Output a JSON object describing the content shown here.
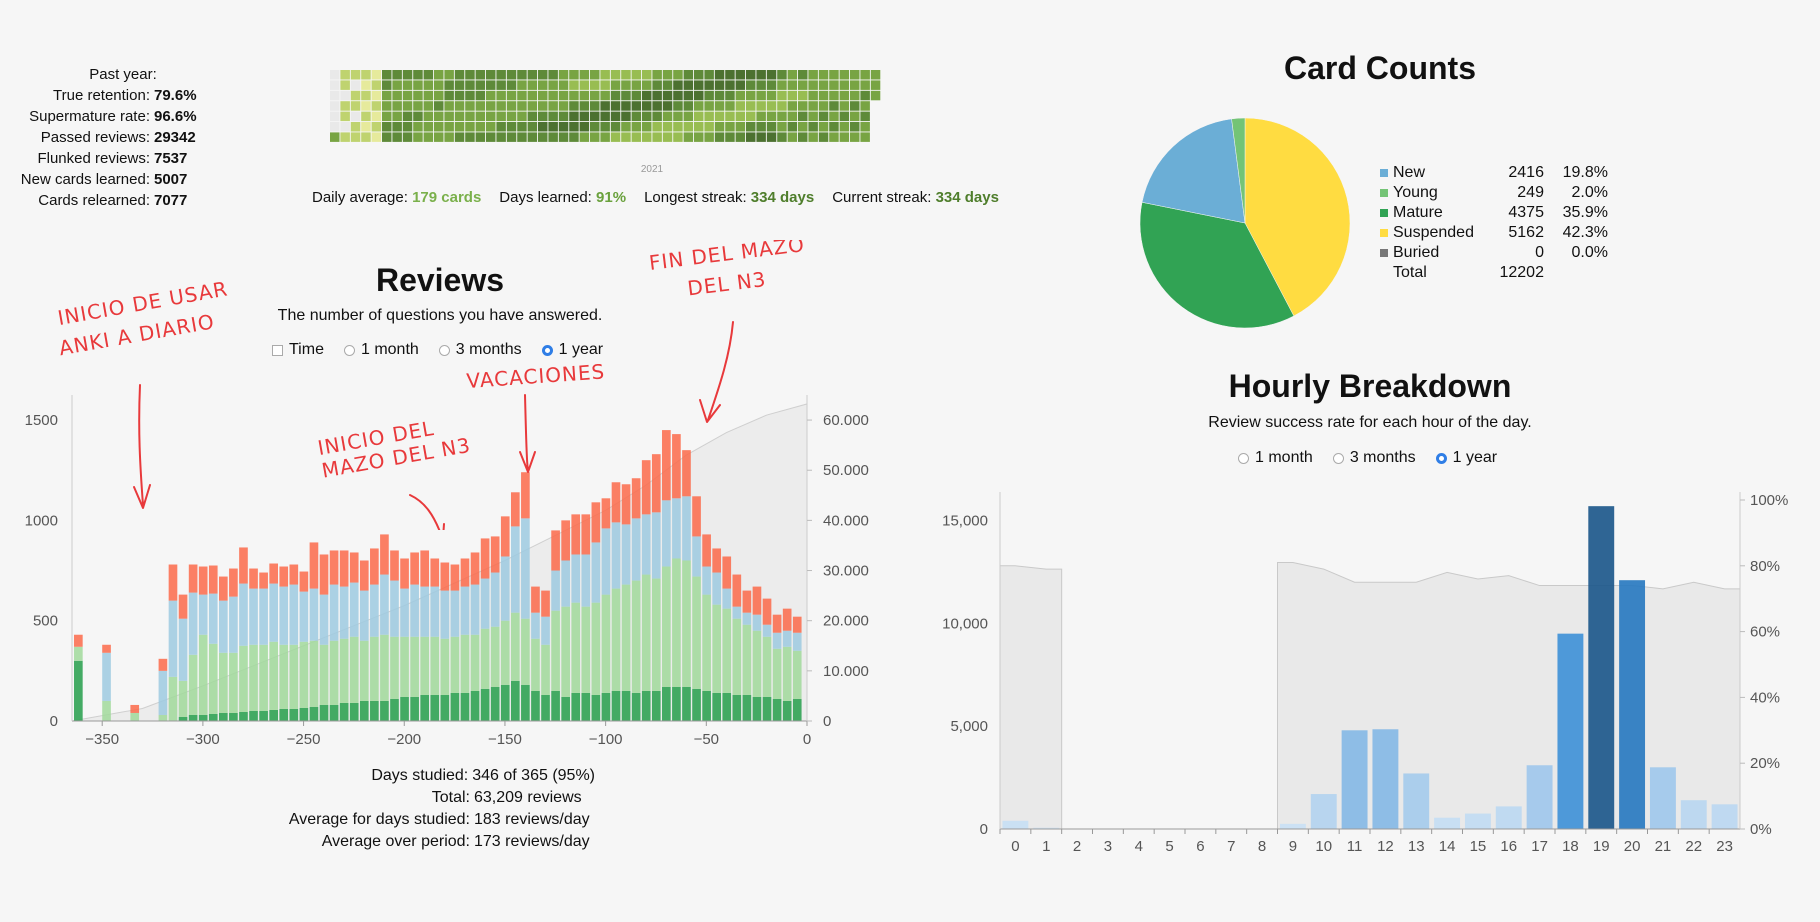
{
  "past_year": {
    "heading": "Past year:",
    "rows": [
      {
        "label": "True retention:",
        "value": "79.6%"
      },
      {
        "label": "Supermature rate:",
        "value": "96.6%"
      },
      {
        "label": "Passed reviews:",
        "value": "29342"
      },
      {
        "label": "Flunked reviews:",
        "value": "7537"
      },
      {
        "label": "New cards learned:",
        "value": "5007"
      },
      {
        "label": "Cards relearned:",
        "value": "7077"
      }
    ]
  },
  "heatmap": {
    "year_label": "2021",
    "colors": [
      "#e9e9e9",
      "#e6ea9c",
      "#bfd36f",
      "#98bd52",
      "#78a443",
      "#5e8a39",
      "#4c7130"
    ],
    "summary": [
      {
        "label": "Daily average:",
        "value": "179 cards",
        "color": "#7ab04b"
      },
      {
        "label": "Days learned:",
        "value": "91%",
        "color": "#6aa13d"
      },
      {
        "label": "Longest streak:",
        "value": "334 days",
        "color": "#4f7e2c"
      },
      {
        "label": "Current streak:",
        "value": "334 days",
        "color": "#4f7e2c"
      }
    ]
  },
  "reviews": {
    "title": "Reviews",
    "subtitle": "The number of questions you have answered.",
    "options": [
      {
        "label": "Time",
        "kind": "checkbox",
        "on": false
      },
      {
        "label": "1 month",
        "kind": "radio",
        "on": false
      },
      {
        "label": "3 months",
        "kind": "radio",
        "on": false
      },
      {
        "label": "1 year",
        "kind": "radio",
        "on": true
      }
    ],
    "summary": [
      {
        "label": "Days studied:",
        "value": "346 of 365 (95%)"
      },
      {
        "label": "Total:",
        "value": "63,209 reviews"
      },
      {
        "label": "Average for days studied:",
        "value": "183 reviews/day"
      },
      {
        "label": "Average over period:",
        "value": "173 reviews/day"
      }
    ],
    "annotations": {
      "a1_line1": "INICIO DE USAR",
      "a1_line2": "ANKI A DIARIO",
      "a2_line1": "INICIO DEL",
      "a2_line2": "MAZO DEL N3",
      "a3": "VACACIONES",
      "a4_line1": "FIN DEL MAZO",
      "a4_line2": "DEL N3"
    }
  },
  "card_counts": {
    "title": "Card Counts",
    "rows": [
      {
        "label": "New",
        "count": "2416",
        "pct": "19.8%",
        "color": "#6baed6"
      },
      {
        "label": "Young",
        "count": "249",
        "pct": "2.0%",
        "color": "#74c476"
      },
      {
        "label": "Mature",
        "count": "4375",
        "pct": "35.9%",
        "color": "#31a354"
      },
      {
        "label": "Suspended",
        "count": "5162",
        "pct": "42.3%",
        "color": "#ffdc41"
      },
      {
        "label": "Buried",
        "count": "0",
        "pct": "0.0%",
        "color": "#777777"
      }
    ],
    "total_label": "Total",
    "total_value": "12202"
  },
  "hourly": {
    "title": "Hourly Breakdown",
    "subtitle": "Review success rate for each hour of the day.",
    "options": [
      {
        "label": "1 month",
        "on": false
      },
      {
        "label": "3 months",
        "on": false
      },
      {
        "label": "1 year",
        "on": true
      }
    ]
  },
  "chart_data": [
    {
      "type": "bar",
      "title": "Reviews",
      "x_range": [
        -365,
        0
      ],
      "x_ticks": [
        "−350",
        "−300",
        "−250",
        "−200",
        "−150",
        "−100",
        "−50",
        "0"
      ],
      "x_tick_values": [
        -350,
        -300,
        -250,
        -200,
        -150,
        -100,
        -50,
        0
      ],
      "ylim": [
        0,
        1600
      ],
      "y_ticks": [
        "0",
        "500",
        "1000",
        "1500"
      ],
      "y_tick_values": [
        0,
        500,
        1000,
        1500
      ],
      "y2lim": [
        0,
        64000
      ],
      "y2_ticks": [
        "0",
        "10.000",
        "20.000",
        "30.000",
        "40.000",
        "50.000",
        "60.000"
      ],
      "y2_tick_values": [
        0,
        10000,
        20000,
        30000,
        40000,
        50000,
        60000
      ],
      "stack_order": [
        "Mature",
        "Young",
        "Learning",
        "Relearning"
      ],
      "series_colors": [
        "#31a354",
        "#a1d99b",
        "#9ecae1",
        "#fb6a4a"
      ],
      "x_start": [
        -364,
        -357,
        -350,
        -343,
        -336,
        -329,
        -322,
        -317,
        -312,
        -307,
        -302,
        -297,
        -292,
        -287,
        -282,
        -277,
        -272,
        -267,
        -262,
        -257,
        -252,
        -247,
        -242,
        -237,
        -232,
        -227,
        -222,
        -217,
        -212,
        -207,
        -202,
        -197,
        -192,
        -187,
        -182,
        -177,
        -172,
        -167,
        -162,
        -157,
        -152,
        -147,
        -142,
        -137,
        -132,
        -127,
        -122,
        -117,
        -112,
        -107,
        -102,
        -97,
        -92,
        -87,
        -82,
        -77,
        -72,
        -67,
        -62,
        -57,
        -52,
        -47,
        -42,
        -37,
        -32,
        -27,
        -22,
        -17,
        -12,
        -7
      ],
      "bars": [
        [
          300,
          70,
          0,
          60
        ],
        [
          0,
          0,
          0,
          0
        ],
        [
          0,
          100,
          240,
          40
        ],
        [
          0,
          0,
          0,
          0
        ],
        [
          0,
          40,
          0,
          40
        ],
        [
          0,
          0,
          0,
          0
        ],
        [
          0,
          30,
          220,
          60
        ],
        [
          0,
          220,
          380,
          180
        ],
        [
          20,
          180,
          310,
          120
        ],
        [
          30,
          300,
          310,
          140
        ],
        [
          30,
          400,
          200,
          140
        ],
        [
          35,
          350,
          250,
          140
        ],
        [
          40,
          300,
          260,
          120
        ],
        [
          40,
          300,
          280,
          140
        ],
        [
          45,
          330,
          310,
          180
        ],
        [
          50,
          330,
          280,
          100
        ],
        [
          50,
          330,
          280,
          80
        ],
        [
          55,
          340,
          290,
          100
        ],
        [
          60,
          320,
          290,
          100
        ],
        [
          60,
          320,
          300,
          100
        ],
        [
          65,
          330,
          250,
          100
        ],
        [
          70,
          330,
          260,
          230
        ],
        [
          80,
          300,
          250,
          200
        ],
        [
          80,
          320,
          280,
          170
        ],
        [
          90,
          320,
          260,
          180
        ],
        [
          90,
          330,
          270,
          150
        ],
        [
          100,
          300,
          250,
          150
        ],
        [
          100,
          320,
          260,
          180
        ],
        [
          100,
          330,
          300,
          200
        ],
        [
          110,
          310,
          280,
          150
        ],
        [
          120,
          300,
          240,
          150
        ],
        [
          120,
          300,
          260,
          160
        ],
        [
          130,
          290,
          250,
          180
        ],
        [
          130,
          290,
          250,
          140
        ],
        [
          130,
          280,
          240,
          140
        ],
        [
          140,
          280,
          230,
          130
        ],
        [
          140,
          290,
          240,
          140
        ],
        [
          150,
          280,
          250,
          160
        ],
        [
          160,
          300,
          250,
          200
        ],
        [
          170,
          300,
          270,
          180
        ],
        [
          180,
          320,
          320,
          200
        ],
        [
          200,
          340,
          430,
          170
        ],
        [
          180,
          330,
          500,
          230
        ],
        [
          150,
          260,
          130,
          130
        ],
        [
          130,
          250,
          140,
          130
        ],
        [
          150,
          400,
          200,
          200
        ],
        [
          120,
          450,
          230,
          200
        ],
        [
          140,
          450,
          240,
          200
        ],
        [
          140,
          430,
          260,
          200
        ],
        [
          130,
          460,
          300,
          200
        ],
        [
          140,
          490,
          330,
          150
        ],
        [
          150,
          510,
          330,
          200
        ],
        [
          150,
          530,
          300,
          200
        ],
        [
          140,
          560,
          310,
          200
        ],
        [
          150,
          580,
          300,
          270
        ],
        [
          150,
          560,
          330,
          290
        ],
        [
          170,
          600,
          330,
          350
        ],
        [
          170,
          640,
          300,
          320
        ],
        [
          170,
          630,
          320,
          230
        ],
        [
          160,
          560,
          200,
          200
        ],
        [
          150,
          480,
          140,
          160
        ],
        [
          140,
          440,
          160,
          120
        ],
        [
          140,
          420,
          100,
          160
        ],
        [
          130,
          380,
          60,
          160
        ],
        [
          130,
          350,
          60,
          110
        ],
        [
          120,
          330,
          80,
          140
        ],
        [
          120,
          300,
          60,
          130
        ],
        [
          110,
          250,
          80,
          90
        ],
        [
          100,
          270,
          80,
          110
        ],
        [
          110,
          240,
          90,
          80
        ]
      ],
      "cumulative": {
        "x": [
          -365,
          -330,
          -300,
          -250,
          -200,
          -150,
          -120,
          -100,
          -80,
          -60,
          -40,
          -20,
          0
        ],
        "y": [
          0,
          2500,
          7000,
          15000,
          23000,
          32000,
          38000,
          42000,
          47000,
          53000,
          57500,
          61000,
          63209
        ]
      }
    },
    {
      "type": "pie",
      "title": "Card Counts",
      "categories": [
        "New",
        "Young",
        "Mature",
        "Suspended",
        "Buried"
      ],
      "values": [
        2416,
        249,
        4375,
        5162,
        0
      ],
      "colors": [
        "#6baed6",
        "#74c476",
        "#31a354",
        "#ffdc41",
        "#777777"
      ]
    },
    {
      "type": "bar",
      "title": "Hourly Breakdown",
      "categories": [
        "0",
        "1",
        "2",
        "3",
        "4",
        "5",
        "6",
        "7",
        "8",
        "9",
        "10",
        "11",
        "12",
        "13",
        "14",
        "15",
        "16",
        "17",
        "18",
        "19",
        "20",
        "21",
        "22",
        "23"
      ],
      "values": [
        400,
        60,
        0,
        0,
        0,
        0,
        0,
        0,
        0,
        250,
        1700,
        4800,
        4850,
        2700,
        550,
        750,
        1100,
        3100,
        9500,
        15700,
        12100,
        3000,
        1400,
        1200
      ],
      "success_rate": [
        80,
        79,
        null,
        null,
        null,
        null,
        null,
        null,
        null,
        81,
        79,
        75,
        75,
        75,
        78,
        76,
        77,
        74,
        74,
        74,
        74,
        73,
        75,
        73
      ],
      "ylim": [
        0,
        16000
      ],
      "y_ticks": [
        "0",
        "5,000",
        "10,000",
        "15,000"
      ],
      "y_tick_values": [
        0,
        5000,
        10000,
        15000
      ],
      "y2lim": [
        0,
        100
      ],
      "y2_ticks": [
        "0%",
        "20%",
        "40%",
        "60%",
        "80%",
        "100%"
      ],
      "y2_tick_values": [
        0,
        20,
        40,
        60,
        80,
        100
      ]
    }
  ]
}
